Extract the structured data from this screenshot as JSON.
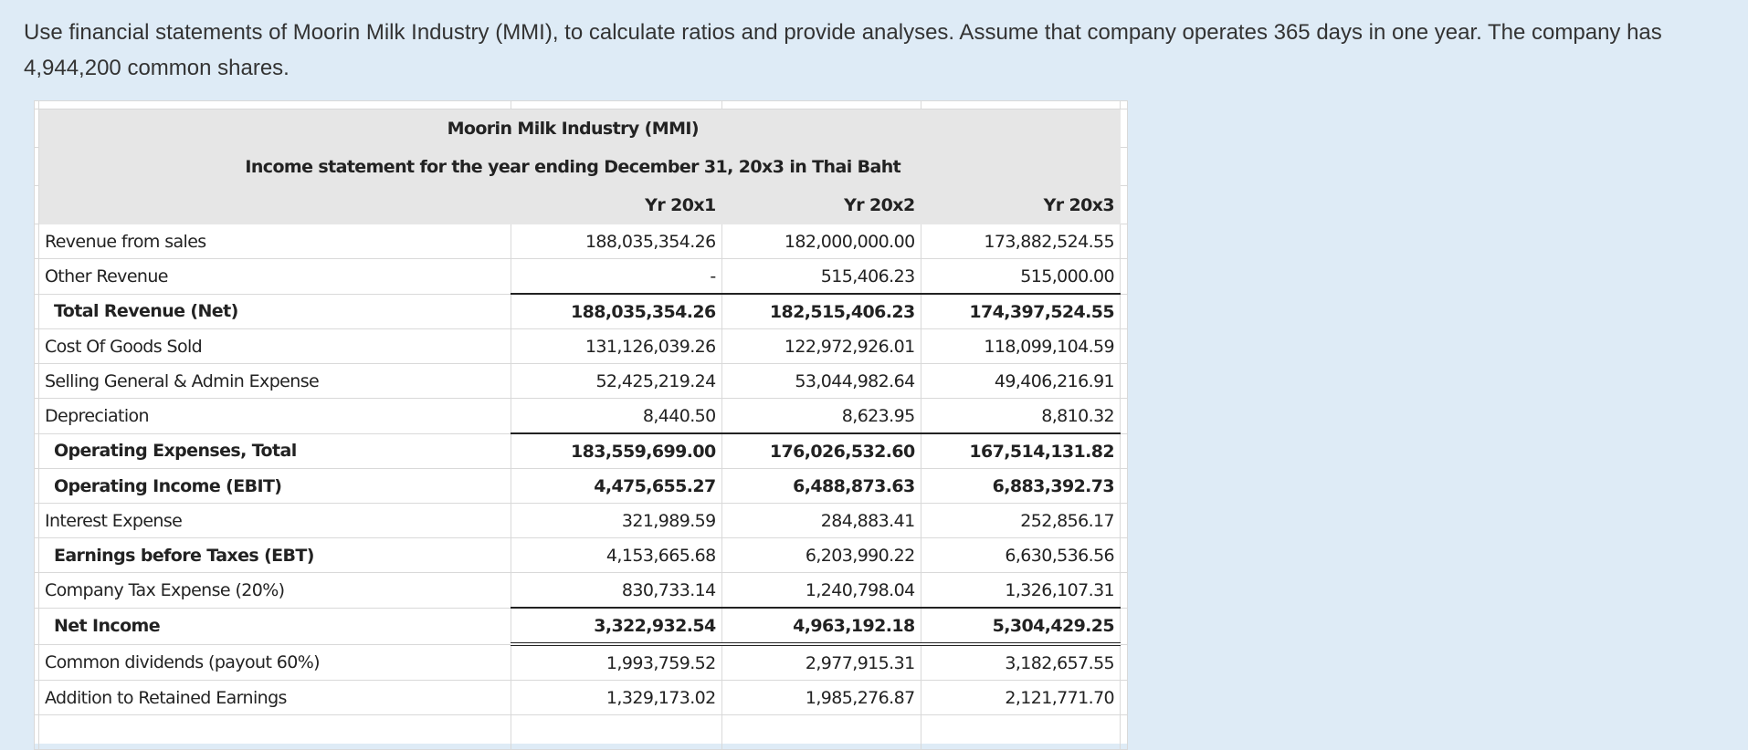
{
  "question": "Use financial statements of Moorin Milk Industry (MMI), to calculate ratios and provide analyses.  Assume that company operates 365 days in one year.  The company has 4,944,200 common shares.",
  "statement": {
    "company": "Moorin Milk Industry (MMI)",
    "subtitle": "Income statement for the year ending December 31, 20x3 in Thai Baht",
    "columns": [
      "Yr 20x1",
      "Yr 20x2",
      "Yr 20x3"
    ],
    "rows": [
      {
        "label": "Revenue from sales",
        "values": [
          "188,035,354.26",
          "182,000,000.00",
          "173,882,524.55"
        ]
      },
      {
        "label": "Other Revenue",
        "values": [
          "-",
          "515,406.23",
          "515,000.00"
        ]
      },
      {
        "label": "Total Revenue (Net)",
        "values": [
          "188,035,354.26",
          "182,515,406.23",
          "174,397,524.55"
        ]
      },
      {
        "label": "Cost Of Goods Sold",
        "values": [
          "131,126,039.26",
          "122,972,926.01",
          "118,099,104.59"
        ]
      },
      {
        "label": "Selling General & Admin Expense",
        "values": [
          "52,425,219.24",
          "53,044,982.64",
          "49,406,216.91"
        ]
      },
      {
        "label": "Depreciation",
        "values": [
          "8,440.50",
          "8,623.95",
          "8,810.32"
        ]
      },
      {
        "label": "Operating Expenses, Total",
        "values": [
          "183,559,699.00",
          "176,026,532.60",
          "167,514,131.82"
        ]
      },
      {
        "label": "Operating Income (EBIT)",
        "values": [
          "4,475,655.27",
          "6,488,873.63",
          "6,883,392.73"
        ]
      },
      {
        "label": "Interest Expense",
        "values": [
          "321,989.59",
          "284,883.41",
          "252,856.17"
        ]
      },
      {
        "label": "Earnings before Taxes (EBT)",
        "values": [
          "4,153,665.68",
          "6,203,990.22",
          "6,630,536.56"
        ]
      },
      {
        "label": "Company Tax Expense (20%)",
        "values": [
          "830,733.14",
          "1,240,798.04",
          "1,326,107.31"
        ]
      },
      {
        "label": "Net Income",
        "values": [
          "3,322,932.54",
          "4,963,192.18",
          "5,304,429.25"
        ]
      },
      {
        "label": "Common dividends (payout 60%)",
        "values": [
          "1,993,759.52",
          "2,977,915.31",
          "3,182,657.55"
        ]
      },
      {
        "label": "Addition to Retained Earnings",
        "values": [
          "1,329,173.02",
          "1,985,276.87",
          "2,121,771.70"
        ]
      }
    ]
  }
}
